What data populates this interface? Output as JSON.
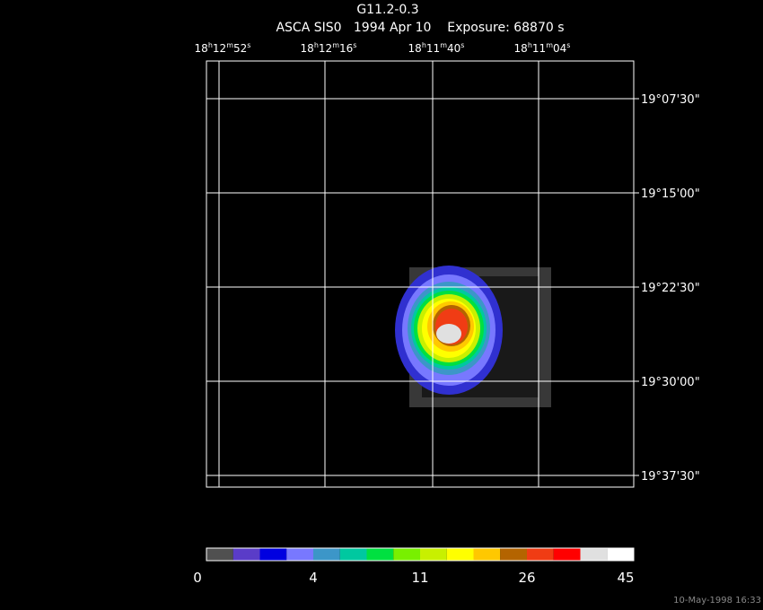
{
  "header": {
    "title": "G11.2-0.3",
    "subtitle": "ASCA SIS0   1994 Apr 10    Exposure: 68870 s"
  },
  "ra_labels": [
    [
      "18",
      "h",
      "12",
      "m",
      "52",
      "s"
    ],
    [
      "18",
      "h",
      "12",
      "m",
      "16",
      "s"
    ],
    [
      "18",
      "h",
      "11",
      "m",
      "40",
      "s"
    ],
    [
      "18",
      "h",
      "11",
      "m",
      "04",
      "s"
    ]
  ],
  "dec_labels": [
    "19°07'30\"",
    "19°15'00\"",
    "19°22'30\"",
    "19°30'00\"",
    "19°37'30\""
  ],
  "colorbar": {
    "colors": [
      "#505050",
      "#5a3cc8",
      "#0000e0",
      "#7878ff",
      "#3c96c8",
      "#00c8a0",
      "#00e040",
      "#78f000",
      "#c8f000",
      "#ffff00",
      "#ffc800",
      "#b46400",
      "#f03c14",
      "#ff0000",
      "#e0e0e0",
      "#ffffff"
    ],
    "labels": [
      "0",
      "4",
      "11",
      "26",
      "45"
    ]
  },
  "footer": "10-May-1998 16:33"
}
